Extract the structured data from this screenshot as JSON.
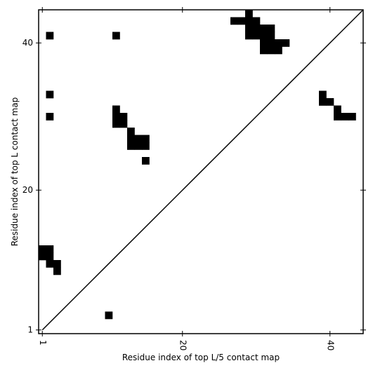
{
  "chart_data": {
    "type": "scatter",
    "xlabel": "Residue index of top L/5 contact map",
    "ylabel": "Residue index of top L contact map",
    "xlim": [
      0.5,
      44.5
    ],
    "ylim": [
      0.5,
      44.5
    ],
    "xticks": [
      1,
      20,
      40
    ],
    "yticks": [
      1,
      20,
      40
    ],
    "marker": "square",
    "color": "#000000",
    "diagonal": {
      "x": [
        1,
        44.5
      ],
      "y": [
        1,
        44.5
      ]
    },
    "x": [
      2,
      11,
      2,
      2,
      10,
      1,
      2,
      1,
      2,
      2,
      3,
      3,
      11,
      11,
      12,
      11,
      12,
      13,
      13,
      14,
      15,
      13,
      14,
      15,
      15,
      39,
      39,
      40,
      41,
      41,
      42,
      43,
      29,
      27,
      28,
      29,
      30,
      29,
      30,
      31,
      32,
      29,
      30,
      31,
      32,
      31,
      32,
      33,
      34,
      31,
      32,
      33
    ],
    "y": [
      41,
      41,
      33,
      30,
      3,
      12,
      12,
      11,
      11,
      10,
      10,
      9,
      31,
      30,
      30,
      29,
      29,
      28,
      27,
      27,
      27,
      26,
      26,
      26,
      24,
      33,
      32,
      32,
      31,
      30,
      30,
      30,
      44,
      43,
      43,
      43,
      43,
      42,
      42,
      42,
      42,
      41,
      41,
      41,
      41,
      40,
      40,
      40,
      40,
      39,
      39,
      39
    ]
  }
}
